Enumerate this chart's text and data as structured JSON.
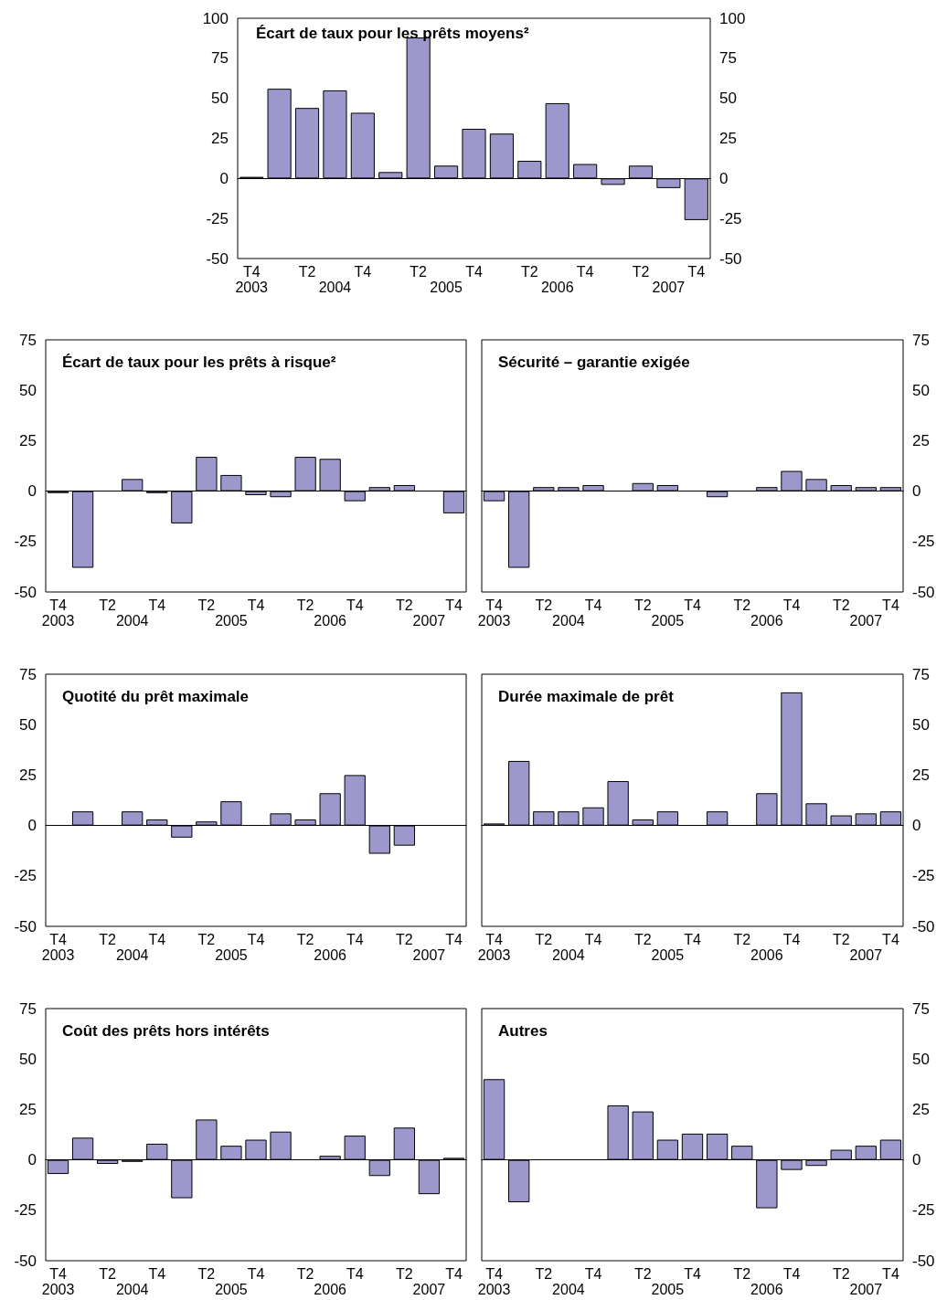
{
  "chart_data": [
    {
      "type": "bar",
      "title": "Écart de taux pour les prêts moyens²",
      "categories": [
        "T4\n2003",
        null,
        "T2\n2004",
        null,
        "T4",
        null,
        "T2\n2005",
        null,
        "T4",
        null,
        "T2\n2006",
        null,
        "T4",
        null,
        "T2\n2007",
        null,
        "T4"
      ],
      "values": [
        1,
        56,
        44,
        55,
        41,
        4,
        88,
        8,
        31,
        28,
        11,
        47,
        9,
        -4,
        8,
        -6,
        -26
      ],
      "color": "#9c98cc",
      "ylim": [
        -50,
        100
      ],
      "yticks": [
        -50,
        -25,
        0,
        25,
        50,
        75,
        100
      ],
      "y2lim": [
        -50,
        100
      ],
      "y2ticks": [
        -50,
        -25,
        0,
        25,
        50,
        75,
        100
      ]
    },
    {
      "type": "bar",
      "title": "Écart de taux pour les prêts à risque²",
      "categories": [
        "T4\n2003",
        null,
        "T2\n2004",
        null,
        "T4",
        null,
        "T2\n2005",
        null,
        "T4",
        null,
        "T2\n2006",
        null,
        "T4",
        null,
        "T2\n2007",
        null,
        "T4"
      ],
      "values": [
        -1,
        -38,
        null,
        6,
        -1,
        -16,
        17,
        8,
        -2,
        -3,
        17,
        16,
        -5,
        2,
        3,
        null,
        -11
      ],
      "color": "#9c98cc",
      "ylim": [
        -50,
        75
      ],
      "yticks": [
        -50,
        -25,
        0,
        25,
        50,
        75
      ]
    },
    {
      "type": "bar",
      "title": "Sécurité – garantie exigée",
      "categories": [
        "T4\n2003",
        null,
        "T2\n2004",
        null,
        "T4",
        null,
        "T2\n2005",
        null,
        "T4",
        null,
        "T2\n2006",
        null,
        "T4",
        null,
        "T2\n2007",
        null,
        "T4"
      ],
      "values": [
        -5,
        -38,
        2,
        2,
        3,
        null,
        4,
        3,
        null,
        -3,
        null,
        2,
        10,
        6,
        3,
        2,
        2
      ],
      "color": "#9c98cc",
      "ylim": [
        -50,
        75
      ],
      "yticks": [
        -50,
        -25,
        0,
        25,
        50,
        75
      ]
    },
    {
      "type": "bar",
      "title": "Quotité du prêt maximale",
      "categories": [
        "T4\n2003",
        null,
        "T2\n2004",
        null,
        "T4",
        null,
        "T2\n2005",
        null,
        "T4",
        null,
        "T2\n2006",
        null,
        "T4",
        null,
        "T2\n2007",
        null,
        "T4"
      ],
      "values": [
        null,
        7,
        null,
        7,
        3,
        -6,
        2,
        12,
        null,
        6,
        3,
        16,
        25,
        -14,
        -10,
        null,
        null
      ],
      "color": "#9c98cc",
      "ylim": [
        -50,
        75
      ],
      "yticks": [
        -50,
        -25,
        0,
        25,
        50,
        75
      ]
    },
    {
      "type": "bar",
      "title": "Durée maximale de prêt",
      "categories": [
        "T4\n2003",
        null,
        "T2\n2004",
        null,
        "T4",
        null,
        "T2\n2005",
        null,
        "T4",
        null,
        "T2\n2006",
        null,
        "T4",
        null,
        "T2\n2007",
        null,
        "T4"
      ],
      "values": [
        1,
        32,
        7,
        7,
        9,
        22,
        3,
        7,
        null,
        7,
        null,
        16,
        66,
        11,
        5,
        6,
        7
      ],
      "color": "#9c98cc",
      "ylim": [
        -50,
        75
      ],
      "yticks": [
        -50,
        -25,
        0,
        25,
        50,
        75
      ]
    },
    {
      "type": "bar",
      "title": "Coût des prêts hors intérêts",
      "categories": [
        "T4\n2003",
        null,
        "T2\n2004",
        null,
        "T4",
        null,
        "T2\n2005",
        null,
        "T4",
        null,
        "T2\n2006",
        null,
        "T4",
        null,
        "T2\n2007",
        null,
        "T4"
      ],
      "values": [
        -7,
        11,
        -2,
        -1,
        8,
        -19,
        20,
        7,
        10,
        14,
        null,
        2,
        12,
        -8,
        16,
        -17,
        1
      ],
      "color": "#9c98cc",
      "ylim": [
        -50,
        75
      ],
      "yticks": [
        -50,
        -25,
        0,
        25,
        50,
        75
      ]
    },
    {
      "type": "bar",
      "title": "Autres",
      "categories": [
        "T4\n2003",
        null,
        "T2\n2004",
        null,
        "T4",
        null,
        "T2\n2005",
        null,
        "T4",
        null,
        "T2\n2006",
        null,
        "T4",
        null,
        "T2\n2007",
        null,
        "T4"
      ],
      "values": [
        40,
        -21,
        null,
        null,
        null,
        27,
        24,
        10,
        13,
        13,
        7,
        -24,
        -5,
        -3,
        5,
        7,
        10
      ],
      "color": "#9c98cc",
      "ylim": [
        -50,
        75
      ],
      "yticks": [
        -50,
        -25,
        0,
        25,
        50,
        75
      ]
    }
  ]
}
